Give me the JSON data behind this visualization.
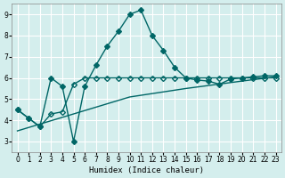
{
  "xlabel": "Humidex (Indice chaleur)",
  "bg_color": "#d4eeed",
  "grid_color": "#ffffff",
  "line_color": "#006666",
  "xlim": [
    -0.5,
    23.5
  ],
  "ylim": [
    2.5,
    9.5
  ],
  "xticks": [
    0,
    1,
    2,
    3,
    4,
    5,
    6,
    7,
    8,
    9,
    10,
    11,
    12,
    13,
    14,
    15,
    16,
    17,
    18,
    19,
    20,
    21,
    22,
    23
  ],
  "yticks": [
    3,
    4,
    5,
    6,
    7,
    8,
    9
  ],
  "series1_x": [
    0,
    1,
    2,
    3,
    4,
    5,
    6,
    7,
    8,
    9,
    10,
    11,
    12,
    13,
    14,
    15,
    16,
    17,
    18,
    19,
    20,
    21,
    22,
    23
  ],
  "series1_y": [
    4.5,
    4.1,
    3.7,
    6.0,
    5.6,
    3.0,
    5.6,
    6.6,
    7.5,
    8.2,
    9.0,
    9.2,
    8.0,
    7.3,
    6.5,
    6.0,
    5.9,
    5.85,
    5.7,
    5.95,
    6.0,
    6.05,
    6.1,
    6.1
  ],
  "series2_x": [
    0,
    1,
    2,
    3,
    4,
    5,
    6,
    7,
    8,
    9,
    10,
    11,
    12,
    13,
    14,
    15,
    16,
    17,
    18,
    19,
    20,
    21,
    22,
    23
  ],
  "series2_y": [
    4.5,
    4.1,
    3.7,
    4.3,
    4.4,
    5.7,
    6.0,
    6.0,
    6.0,
    6.0,
    6.0,
    6.0,
    6.0,
    6.0,
    6.0,
    6.0,
    6.0,
    6.0,
    6.0,
    6.0,
    6.0,
    6.0,
    6.0,
    6.0
  ],
  "series3_x": [
    0,
    5,
    10,
    15,
    20,
    23
  ],
  "series3_y": [
    3.5,
    4.3,
    5.1,
    5.5,
    5.85,
    6.05
  ],
  "marker_filled": "D",
  "marker_open": "D",
  "marker_size": 3,
  "line_width": 1.0
}
